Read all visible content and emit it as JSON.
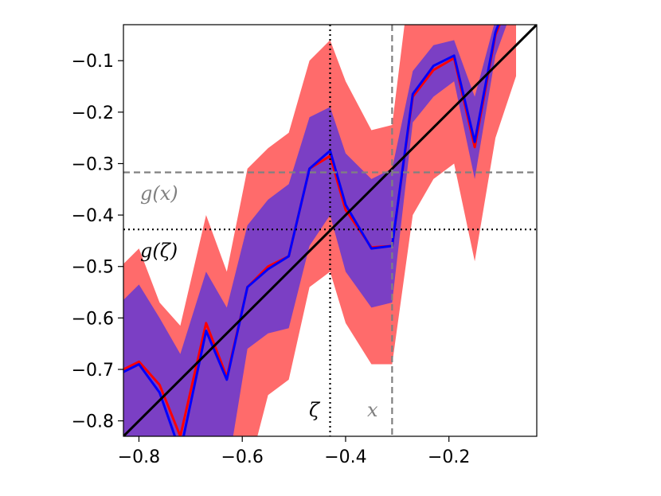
{
  "chart_data": {
    "type": "line",
    "xlim": [
      -0.83,
      -0.03
    ],
    "ylim": [
      -0.83,
      -0.03
    ],
    "xticks": [
      -0.8,
      -0.6,
      -0.4,
      -0.2
    ],
    "xtick_labels": [
      "−0.8",
      "−0.6",
      "−0.4",
      "−0.2"
    ],
    "yticks": [
      -0.1,
      -0.2,
      -0.3,
      -0.4,
      -0.5,
      -0.6,
      -0.7,
      -0.8
    ],
    "ytick_labels": [
      "−0.1",
      "−0.2",
      "−0.3",
      "−0.4",
      "−0.5",
      "−0.6",
      "−0.7",
      "−0.8"
    ],
    "x": [
      -0.83,
      -0.8,
      -0.76,
      -0.72,
      -0.67,
      -0.63,
      -0.59,
      -0.55,
      -0.51,
      -0.47,
      -0.43,
      -0.4,
      -0.35,
      -0.31,
      -0.27,
      -0.23,
      -0.19,
      -0.15,
      -0.11,
      -0.07
    ],
    "series": [
      {
        "color": "#ff0000",
        "mean": [
          -0.7,
          -0.685,
          -0.73,
          -0.83,
          -0.61,
          -0.715,
          -0.54,
          -0.5,
          -0.48,
          -0.31,
          -0.285,
          -0.39,
          -0.463,
          -0.46,
          -0.17,
          -0.118,
          -0.095,
          -0.268,
          -0.05,
          0.05
        ],
        "upper": [
          -0.495,
          -0.465,
          -0.57,
          -0.615,
          -0.4,
          -0.51,
          -0.31,
          -0.27,
          -0.24,
          -0.1,
          -0.06,
          -0.14,
          -0.235,
          -0.225,
          0.1,
          0.1,
          0.1,
          0.1,
          0.1,
          0.1
        ],
        "lower": [
          -0.905,
          -0.905,
          -0.905,
          -0.905,
          -0.905,
          -0.905,
          -0.905,
          -0.75,
          -0.72,
          -0.54,
          -0.51,
          -0.61,
          -0.69,
          -0.69,
          -0.4,
          -0.33,
          -0.3,
          -0.49,
          -0.25,
          -0.13
        ],
        "fill_color": "#ff6b6b"
      },
      {
        "color": "#0000ff",
        "mean": [
          -0.705,
          -0.69,
          -0.745,
          -0.86,
          -0.625,
          -0.72,
          -0.54,
          -0.505,
          -0.48,
          -0.31,
          -0.275,
          -0.38,
          -0.465,
          -0.46,
          -0.165,
          -0.11,
          -0.09,
          -0.258,
          -0.045,
          0.06
        ],
        "upper": [
          -0.565,
          -0.535,
          -0.6,
          -0.67,
          -0.51,
          -0.58,
          -0.42,
          -0.37,
          -0.34,
          -0.21,
          -0.19,
          -0.28,
          -0.33,
          -0.31,
          -0.12,
          -0.07,
          -0.06,
          -0.17,
          -0.02,
          0.1
        ],
        "lower": [
          -0.905,
          -0.905,
          -0.905,
          -0.905,
          -0.905,
          -0.905,
          -0.66,
          -0.63,
          -0.62,
          -0.46,
          -0.4,
          -0.51,
          -0.58,
          -0.57,
          -0.22,
          -0.17,
          -0.14,
          -0.33,
          -0.09,
          0.02
        ],
        "fill_color": "#7b3fc4"
      }
    ],
    "diagonal": {
      "from": [
        -0.83,
        -0.83
      ],
      "to": [
        -0.03,
        -0.03
      ],
      "color": "#000000"
    },
    "annotations": {
      "x_value": -0.31,
      "gx_value": -0.317,
      "zeta_value": -0.43,
      "gzeta_value": -0.428,
      "x_label": "x",
      "gx_label": "g(x)",
      "zeta_label": "ζ",
      "gzeta_label": "g(ζ)",
      "x_color": "#808080",
      "zeta_color": "#000000"
    }
  }
}
